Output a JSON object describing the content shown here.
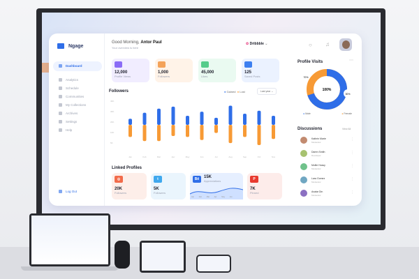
{
  "app": {
    "name": "Ngage"
  },
  "header": {
    "greeting": "Good Morning, ",
    "user": "Antor Paul",
    "subtitle": "Your overview is here",
    "workspace": "Dribbble"
  },
  "sidebar": {
    "items": [
      {
        "label": "Dashboard",
        "active": true
      },
      {
        "label": "Analytics"
      },
      {
        "label": "Schedule"
      },
      {
        "label": "Communities"
      },
      {
        "label": "My Collections"
      },
      {
        "label": "Archives"
      },
      {
        "label": "Settings"
      },
      {
        "label": "Help"
      }
    ],
    "logout": "Log Out"
  },
  "stats": [
    {
      "value": "12,000",
      "label": "Profile Views",
      "color": "#8b6cf6",
      "bg": "#f1edff"
    },
    {
      "value": "1,000",
      "label": "Followers",
      "color": "#f4a35a",
      "bg": "#fff3e8"
    },
    {
      "value": "45,000",
      "label": "Likes",
      "color": "#56cc8b",
      "bg": "#eafaf1"
    },
    {
      "value": "125",
      "label": "Saved Posts",
      "color": "#3d7ff0",
      "bg": "#ebf2ff"
    }
  ],
  "chart_data": {
    "type": "bar",
    "title": "Followers",
    "categories": [
      "Jan",
      "Feb",
      "Mar",
      "Apr",
      "May",
      "Jun",
      "Jul",
      "Aug",
      "Sep",
      "Oct",
      "Nov"
    ],
    "series": [
      {
        "name": "Gained",
        "color": "#2f6ee8",
        "values": [
          6,
          12,
          16,
          18,
          9,
          13,
          7,
          19,
          11,
          14,
          9
        ]
      },
      {
        "name": "Lost",
        "color": "#f79a35",
        "values": [
          12,
          16,
          16,
          11,
          12,
          15,
          8,
          18,
          12,
          20,
          14
        ]
      }
    ],
    "yticks": [
      "40K",
      "30K",
      "20K",
      "10K",
      "5K"
    ],
    "filter": "Last year",
    "legend": "top-right"
  },
  "linked": {
    "title": "Linked Profiles",
    "items": [
      {
        "icon": "instagram-icon",
        "glyph": "◎",
        "value": "20K",
        "label": "Followers",
        "color": "#f26b4a",
        "bg": "#fdeee9"
      },
      {
        "icon": "twitter-icon",
        "glyph": "t",
        "value": "5K",
        "label": "Followers",
        "color": "#3fa8ee",
        "bg": "#eaf5fd"
      },
      {
        "icon": "behance-icon",
        "glyph": "Bē",
        "value": "15K",
        "label": "Appreciations",
        "color": "#2f6ee8",
        "bg": "#e6efff"
      },
      {
        "icon": "pinterest-icon",
        "glyph": "P",
        "value": "7K",
        "label": "Pinned",
        "color": "#e83a2f",
        "bg": "#fdecea"
      }
    ],
    "months": [
      "Jan",
      "Feb",
      "Mar",
      "Apr",
      "May",
      "Jun"
    ]
  },
  "visits": {
    "title": "Profile Visits",
    "center": "100%",
    "male": "70%",
    "female": "30%",
    "male_label": "Male",
    "female_label": "Female",
    "male_pct": 70
  },
  "discussions": {
    "title": "Discussions",
    "view_all": "View All",
    "items": [
      {
        "name": "Kathrin Marie",
        "role": "Moderator"
      },
      {
        "name": "Daren Smith",
        "role": "Developer"
      },
      {
        "name": "Mollie Hussy",
        "role": "Moderator"
      },
      {
        "name": "Lara Gomez",
        "role": "Moderator"
      },
      {
        "name": "Avatar Din",
        "role": "Moderator"
      }
    ]
  }
}
